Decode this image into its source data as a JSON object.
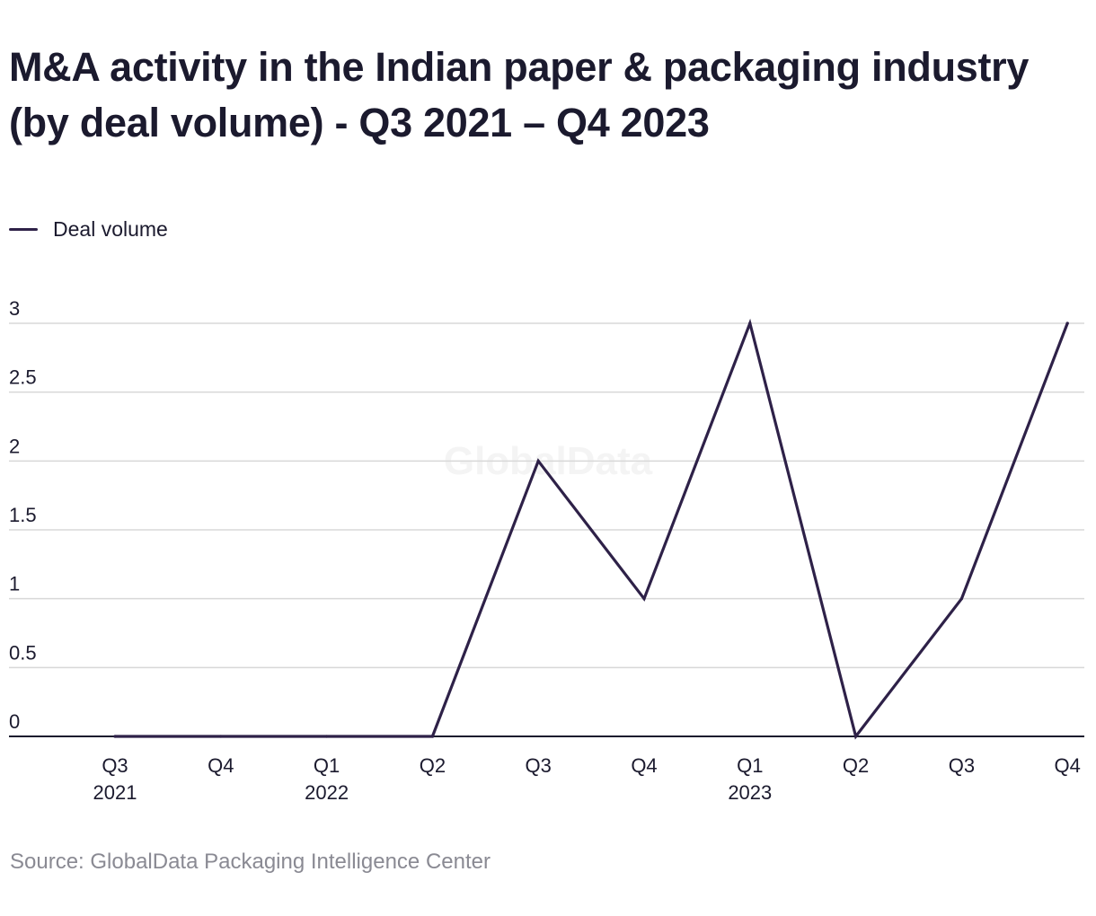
{
  "title": "M&A activity in the Indian paper & packaging industry (by deal volume) - Q3 2021 – Q4 2023",
  "watermark": "GlobalData",
  "source": "Source: GlobalData Packaging Intelligence Center",
  "colors": {
    "line": "#2e2148",
    "grid": "#d8d8d8",
    "axis": "#1b1a2e",
    "text": "#1b1a2e",
    "source": "#8a8a93",
    "watermark": "#f4f4f4"
  },
  "chart_data": {
    "type": "line",
    "categories": [
      "Q3",
      "Q4",
      "Q1",
      "Q2",
      "Q3",
      "Q4",
      "Q1",
      "Q2",
      "Q3",
      "Q4"
    ],
    "category_years": [
      "2021",
      "",
      "2022",
      "",
      "",
      "",
      "2023",
      "",
      "",
      ""
    ],
    "series": [
      {
        "name": "Deal volume",
        "values": [
          0,
          0,
          0,
          0,
          2,
          1,
          3,
          0,
          1,
          3
        ]
      }
    ],
    "y_ticks": [
      "0",
      "0.5",
      "1",
      "1.5",
      "2",
      "2.5",
      "3"
    ],
    "ylim": [
      0,
      3
    ],
    "grid": true,
    "legend_position": "top-left"
  }
}
